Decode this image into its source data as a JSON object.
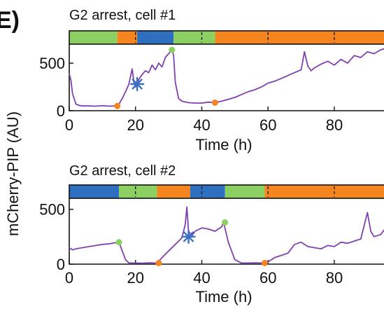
{
  "panel_letter": "E)",
  "ylabel": "mCherry-PIP (AU)",
  "colors": {
    "green": "#8ccf63",
    "orange": "#f5861f",
    "blue": "#2f6fc0",
    "trace": "#8040b0",
    "star": "#3a6fc4"
  },
  "chart_data": [
    {
      "type": "line",
      "title": "G2 arrest, cell #1",
      "xlabel": "Time (h)",
      "xlim": [
        0,
        95
      ],
      "ylim": [
        0,
        700
      ],
      "xticks": [
        0,
        20,
        40,
        60,
        80
      ],
      "yticks": [
        0,
        500
      ],
      "phase_bar": [
        {
          "start": 0,
          "end": 14.5,
          "color": "green"
        },
        {
          "start": 14.5,
          "end": 20.5,
          "color": "orange"
        },
        {
          "start": 20.5,
          "end": 31.5,
          "color": "blue"
        },
        {
          "start": 31.5,
          "end": 44,
          "color": "green"
        },
        {
          "start": 44,
          "end": 95,
          "color": "orange"
        }
      ],
      "dashed_ticks": [
        20,
        40,
        60,
        80
      ],
      "series": [
        {
          "x": [
            0,
            0.5,
            1,
            2,
            3,
            4,
            6,
            8,
            10,
            12,
            14,
            15,
            16,
            17,
            18,
            18.5,
            19,
            19.5,
            20,
            20.5,
            21,
            22,
            23,
            24,
            25,
            26,
            27,
            28,
            29,
            30,
            30.5,
            31,
            31.5,
            32,
            33,
            34,
            36,
            38,
            40,
            42,
            44,
            46,
            48,
            50,
            52,
            54,
            56,
            58,
            60,
            62,
            64,
            66,
            68,
            70,
            71,
            72,
            73,
            74,
            76,
            78,
            80,
            82,
            84,
            86,
            88,
            90,
            92,
            94,
            95
          ],
          "y": [
            390,
            320,
            180,
            70,
            55,
            50,
            50,
            48,
            52,
            48,
            50,
            70,
            130,
            200,
            280,
            360,
            440,
            300,
            250,
            290,
            330,
            380,
            420,
            400,
            480,
            430,
            500,
            460,
            560,
            600,
            620,
            640,
            580,
            300,
            130,
            100,
            85,
            80,
            80,
            90,
            85,
            100,
            120,
            140,
            170,
            200,
            220,
            250,
            290,
            310,
            340,
            370,
            400,
            430,
            620,
            470,
            420,
            450,
            490,
            520,
            480,
            540,
            500,
            580,
            560,
            620,
            600,
            640,
            650
          ]
        }
      ],
      "markers": [
        {
          "kind": "dot",
          "color": "orange",
          "x": 14.5,
          "y": 50
        },
        {
          "kind": "dot",
          "color": "green",
          "x": 31,
          "y": 640
        },
        {
          "kind": "dot",
          "color": "orange",
          "x": 44,
          "y": 85
        },
        {
          "kind": "star",
          "color": "star",
          "x": 20.5,
          "y": 280
        }
      ]
    },
    {
      "type": "line",
      "title": "G2 arrest, cell #2",
      "xlabel": "Time (h)",
      "xlim": [
        0,
        95
      ],
      "ylim": [
        0,
        600
      ],
      "xticks": [
        0,
        20,
        40,
        60,
        80
      ],
      "yticks": [
        0,
        500
      ],
      "phase_bar": [
        {
          "start": 0,
          "end": 15,
          "color": "blue"
        },
        {
          "start": 15,
          "end": 26.5,
          "color": "green"
        },
        {
          "start": 26.5,
          "end": 36.5,
          "color": "orange"
        },
        {
          "start": 36.5,
          "end": 47,
          "color": "blue"
        },
        {
          "start": 47,
          "end": 59,
          "color": "green"
        },
        {
          "start": 59,
          "end": 95,
          "color": "orange"
        }
      ],
      "dashed_ticks": [
        20,
        40,
        60,
        80
      ],
      "series": [
        {
          "x": [
            0,
            1,
            2,
            4,
            6,
            8,
            10,
            12,
            14,
            15,
            16,
            17,
            18,
            20,
            22,
            24,
            26,
            26.5,
            28,
            30,
            32,
            34,
            35,
            35.5,
            36,
            37,
            38,
            40,
            42,
            44,
            46,
            46.5,
            47,
            48,
            50,
            52,
            54,
            56,
            58,
            59,
            60,
            62,
            64,
            66,
            68,
            70,
            72,
            74,
            76,
            78,
            80,
            82,
            84,
            86,
            88,
            90,
            91,
            92,
            94,
            95
          ],
          "y": [
            150,
            130,
            140,
            150,
            160,
            170,
            180,
            185,
            195,
            200,
            120,
            40,
            10,
            10,
            8,
            12,
            10,
            10,
            60,
            120,
            180,
            240,
            360,
            520,
            300,
            260,
            300,
            330,
            320,
            300,
            340,
            380,
            330,
            200,
            40,
            10,
            10,
            12,
            10,
            10,
            20,
            60,
            80,
            100,
            180,
            200,
            160,
            150,
            140,
            170,
            160,
            200,
            190,
            210,
            230,
            470,
            300,
            250,
            270,
            310
          ]
        }
      ],
      "markers": [
        {
          "kind": "dot",
          "color": "green",
          "x": 15,
          "y": 200
        },
        {
          "kind": "dot",
          "color": "orange",
          "x": 27,
          "y": 10
        },
        {
          "kind": "dot",
          "color": "green",
          "x": 47,
          "y": 380
        },
        {
          "kind": "dot",
          "color": "orange",
          "x": 59,
          "y": 10
        },
        {
          "kind": "star",
          "color": "star",
          "x": 36,
          "y": 250
        }
      ]
    }
  ]
}
